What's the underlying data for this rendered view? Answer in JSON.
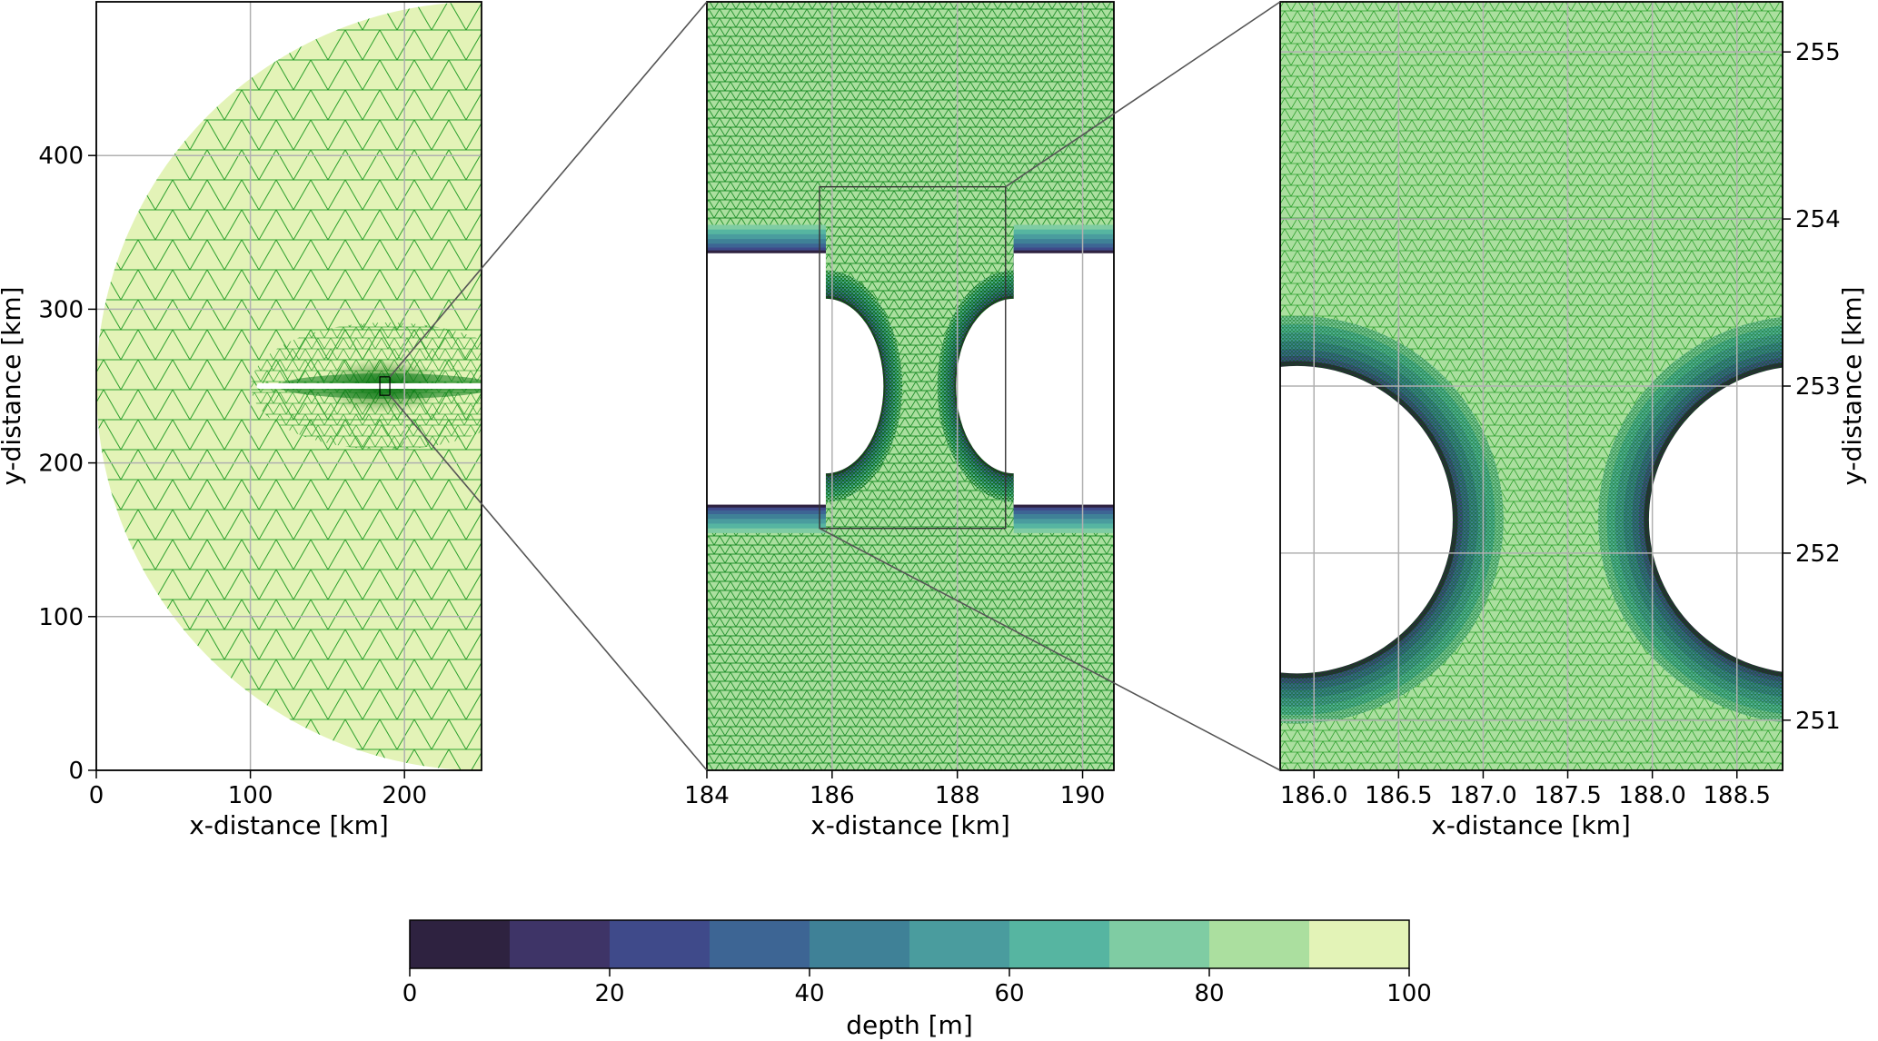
{
  "chart_data": {
    "type": "heatmap",
    "panels": [
      {
        "id": "left",
        "xlabel": "x-distance [km]",
        "ylabel": "y-distance [km]",
        "ylabel_side": "left",
        "xlim": [
          0,
          250
        ],
        "ylim": [
          0,
          500
        ],
        "xticks": [
          0,
          100,
          200
        ],
        "yticks": [
          0,
          100,
          200,
          300,
          400
        ],
        "xticklabels": [
          "0",
          "100",
          "200"
        ],
        "yticklabels": [
          "0",
          "100",
          "200",
          "300",
          "400"
        ],
        "grid": true,
        "domain": {
          "shape": "half-disk",
          "center": [
            250,
            250
          ],
          "radius": 250,
          "slit": {
            "x_start": 104,
            "x_end": 250,
            "y_center": 250
          }
        }
      },
      {
        "id": "middle",
        "xlabel": "x-distance [km]",
        "ylabel": "",
        "xlim": [
          184,
          190.5
        ],
        "ylim": [
          248.15,
          256.25
        ],
        "xticks": [
          184,
          186,
          188,
          190
        ],
        "xticklabels": [
          "184",
          "186",
          "188",
          "190"
        ],
        "yticks": [],
        "grid": true,
        "islands": [
          {
            "center": [
              185.9,
              252.2
            ],
            "radius": 0.92
          },
          {
            "center": [
              188.9,
              252.2
            ],
            "radius": 0.92
          }
        ],
        "channel_y": [
          250.95,
          253.6
        ]
      },
      {
        "id": "right",
        "xlabel": "x-distance [km]",
        "ylabel": "y-distance [km]",
        "ylabel_side": "right",
        "xlim": [
          185.8,
          188.77
        ],
        "ylim": [
          250.7,
          255.3
        ],
        "xticks": [
          186.0,
          186.5,
          187.0,
          187.5,
          188.0,
          188.5
        ],
        "xticklabels": [
          "186.0",
          "186.5",
          "187.0",
          "187.5",
          "188.0",
          "188.5"
        ],
        "yticks": [
          251,
          252,
          253,
          254,
          255
        ],
        "yticklabels": [
          "251",
          "252",
          "253",
          "254",
          "255"
        ],
        "grid": true,
        "islands": [
          {
            "center": [
              185.9,
              252.2
            ],
            "radius": 0.92
          },
          {
            "center": [
              188.9,
              252.2
            ],
            "radius": 0.92
          }
        ]
      }
    ],
    "zoom_boxes": [
      {
        "in_panel": "left",
        "x": [
          184,
          190.5
        ],
        "y": [
          244,
          256
        ]
      },
      {
        "in_panel": "middle",
        "x": [
          185.8,
          188.77
        ],
        "y": [
          250.7,
          254.3
        ]
      }
    ],
    "colorbar": {
      "label": "depth [m]",
      "range": [
        0,
        100
      ],
      "ticks": [
        0,
        20,
        40,
        60,
        80,
        100
      ],
      "ticklabels": [
        "0",
        "20",
        "40",
        "60",
        "80",
        "100"
      ],
      "levels": [
        0,
        10,
        20,
        30,
        40,
        50,
        60,
        70,
        80,
        90,
        100
      ],
      "colors": [
        "#2e2240",
        "#3e3467",
        "#3f4a8a",
        "#3d6594",
        "#3f8197",
        "#4a9c9e",
        "#56b5a1",
        "#7fcca3",
        "#abdf9f",
        "#e3f3b7"
      ]
    },
    "mesh_color": "#2ca02c",
    "mesh_dense_color": "#006400"
  }
}
